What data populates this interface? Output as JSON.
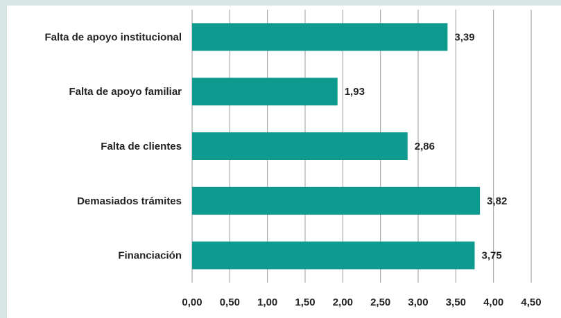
{
  "chart_data": {
    "type": "bar",
    "orientation": "horizontal",
    "categories": [
      "Falta de apoyo institucional",
      "Falta de apoyo familiar",
      "Falta de clientes",
      "Demasiados trámites",
      "Financiación"
    ],
    "values": [
      3.39,
      1.93,
      2.86,
      3.82,
      3.75
    ],
    "value_labels": [
      "3,39",
      "1,93",
      "2,86",
      "3,82",
      "3,75"
    ],
    "color": "#0e9a8f",
    "xlim": [
      0,
      4.5
    ],
    "xticks": [
      {
        "value": 0,
        "label": "0,00"
      },
      {
        "value": 0.5,
        "label": "0,50"
      },
      {
        "value": 1,
        "label": "1,00"
      },
      {
        "value": 1.5,
        "label": "1,50"
      },
      {
        "value": 2,
        "label": "2,00"
      },
      {
        "value": 2.5,
        "label": "2,50"
      },
      {
        "value": 3,
        "label": "3,00"
      },
      {
        "value": 3.5,
        "label": "3,50"
      },
      {
        "value": 4,
        "label": "4,00"
      },
      {
        "value": 4.5,
        "label": "4,50"
      }
    ],
    "grid": true
  }
}
